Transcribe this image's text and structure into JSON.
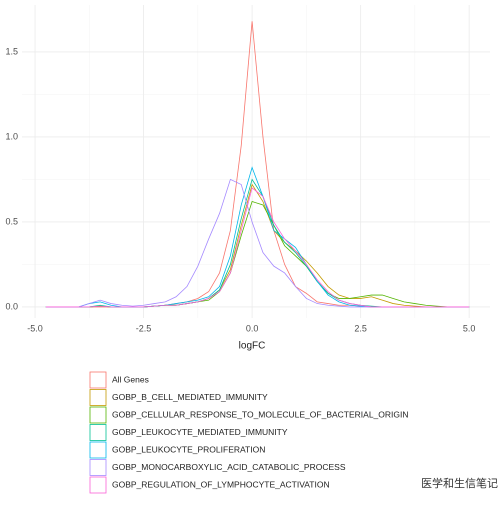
{
  "chart_data": {
    "type": "line",
    "x_label": "logFC",
    "x": [
      -4.75,
      -4.5,
      -4.25,
      -4,
      -3.75,
      -3.5,
      -3.25,
      -3,
      -2.75,
      -2.5,
      -2.25,
      -2,
      -1.75,
      -1.5,
      -1.25,
      -1,
      -0.75,
      -0.5,
      -0.25,
      0,
      0.25,
      0.5,
      0.75,
      1,
      1.25,
      1.5,
      1.75,
      2,
      2.25,
      2.5,
      2.75,
      3,
      3.25,
      3.5,
      3.75,
      4,
      4.25,
      4.5,
      4.75,
      5
    ],
    "series": [
      {
        "name": "All Genes",
        "color": "#F8766D",
        "values": [
          0,
          0,
          0,
          0,
          0,
          0,
          0,
          0,
          0,
          0,
          0.005,
          0.01,
          0.02,
          0.03,
          0.05,
          0.09,
          0.2,
          0.45,
          0.95,
          1.68,
          1.0,
          0.45,
          0.25,
          0.12,
          0.08,
          0.03,
          0.02,
          0.01,
          0.01,
          0.005,
          0,
          0,
          0,
          0,
          0,
          0,
          0,
          0,
          0,
          0
        ]
      },
      {
        "name": "GOBP_B_CELL_MEDIATED_IMMUNITY",
        "color": "#C49A00",
        "values": [
          0,
          0,
          0,
          0,
          0,
          0.005,
          0,
          0,
          0,
          0,
          0.005,
          0.01,
          0.01,
          0.02,
          0.03,
          0.05,
          0.1,
          0.22,
          0.48,
          0.72,
          0.62,
          0.45,
          0.38,
          0.33,
          0.27,
          0.2,
          0.12,
          0.07,
          0.05,
          0.05,
          0.06,
          0.04,
          0.02,
          0.01,
          0.005,
          0,
          0,
          0,
          0,
          0
        ]
      },
      {
        "name": "GOBP_CELLULAR_RESPONSE_TO_MOLECULE_OF_BACTERIAL_ORIGIN",
        "color": "#53B400",
        "values": [
          0,
          0,
          0,
          0,
          0,
          0.005,
          0,
          0,
          0,
          0,
          0.005,
          0.01,
          0.01,
          0.02,
          0.03,
          0.04,
          0.09,
          0.2,
          0.42,
          0.62,
          0.6,
          0.48,
          0.36,
          0.3,
          0.24,
          0.15,
          0.08,
          0.05,
          0.05,
          0.06,
          0.07,
          0.07,
          0.05,
          0.03,
          0.02,
          0.01,
          0.005,
          0,
          0,
          0
        ]
      },
      {
        "name": "GOBP_LEUKOCYTE_MEDIATED_IMMUNITY",
        "color": "#00C094",
        "values": [
          0,
          0,
          0,
          0,
          0,
          0.01,
          0,
          0,
          0,
          0,
          0.005,
          0.01,
          0.01,
          0.02,
          0.03,
          0.05,
          0.1,
          0.25,
          0.52,
          0.75,
          0.65,
          0.48,
          0.38,
          0.32,
          0.24,
          0.15,
          0.08,
          0.04,
          0.02,
          0.01,
          0.005,
          0,
          0,
          0,
          0,
          0,
          0,
          0,
          0,
          0
        ]
      },
      {
        "name": "GOBP_LEUKOCYTE_PROLIFERATION",
        "color": "#00B6EB",
        "values": [
          0,
          0,
          0,
          0,
          0.02,
          0.03,
          0.01,
          0,
          0,
          0,
          0.005,
          0.01,
          0.02,
          0.03,
          0.04,
          0.06,
          0.12,
          0.3,
          0.6,
          0.82,
          0.65,
          0.45,
          0.4,
          0.35,
          0.25,
          0.15,
          0.07,
          0.03,
          0.01,
          0.005,
          0,
          0,
          0,
          0,
          0,
          0,
          0,
          0,
          0,
          0
        ]
      },
      {
        "name": "GOBP_MONOCARBOXYLIC_ACID_CATABOLIC_PROCESS",
        "color": "#A58AFF",
        "values": [
          0,
          0,
          0,
          0,
          0.02,
          0.04,
          0.02,
          0.01,
          0.005,
          0.01,
          0.02,
          0.03,
          0.06,
          0.12,
          0.24,
          0.4,
          0.55,
          0.75,
          0.72,
          0.5,
          0.32,
          0.24,
          0.2,
          0.12,
          0.05,
          0.02,
          0.01,
          0.005,
          0,
          0,
          0,
          0,
          0,
          0,
          0,
          0,
          0,
          0,
          0,
          0
        ]
      },
      {
        "name": "GOBP_REGULATION_OF_LYMPHOCYTE_ACTIVATION",
        "color": "#FB61D7",
        "values": [
          0,
          0,
          0,
          0,
          0,
          0.005,
          0,
          0,
          0,
          0,
          0.005,
          0.01,
          0.01,
          0.02,
          0.03,
          0.05,
          0.09,
          0.2,
          0.45,
          0.7,
          0.65,
          0.5,
          0.4,
          0.33,
          0.25,
          0.16,
          0.09,
          0.04,
          0.02,
          0.01,
          0,
          0,
          0,
          0,
          0,
          0,
          0,
          0,
          0,
          0
        ]
      }
    ],
    "xlim": [
      -5.3,
      5.48
    ],
    "xticks": [
      {
        "value": -5,
        "label": "-5.0"
      },
      -2.5,
      {
        "value": 0,
        "label": "0.0"
      },
      2.5,
      {
        "value": 5,
        "label": "5.0"
      }
    ],
    "ylim": [
      -0.065,
      1.776
    ],
    "yticks": [
      {
        "value": 0,
        "label": "0.0"
      },
      0.5,
      {
        "value": 1,
        "label": "1.0"
      },
      1.5
    ],
    "grid": true,
    "legend_position": "bottom"
  },
  "watermark": "医学和生信笔记"
}
